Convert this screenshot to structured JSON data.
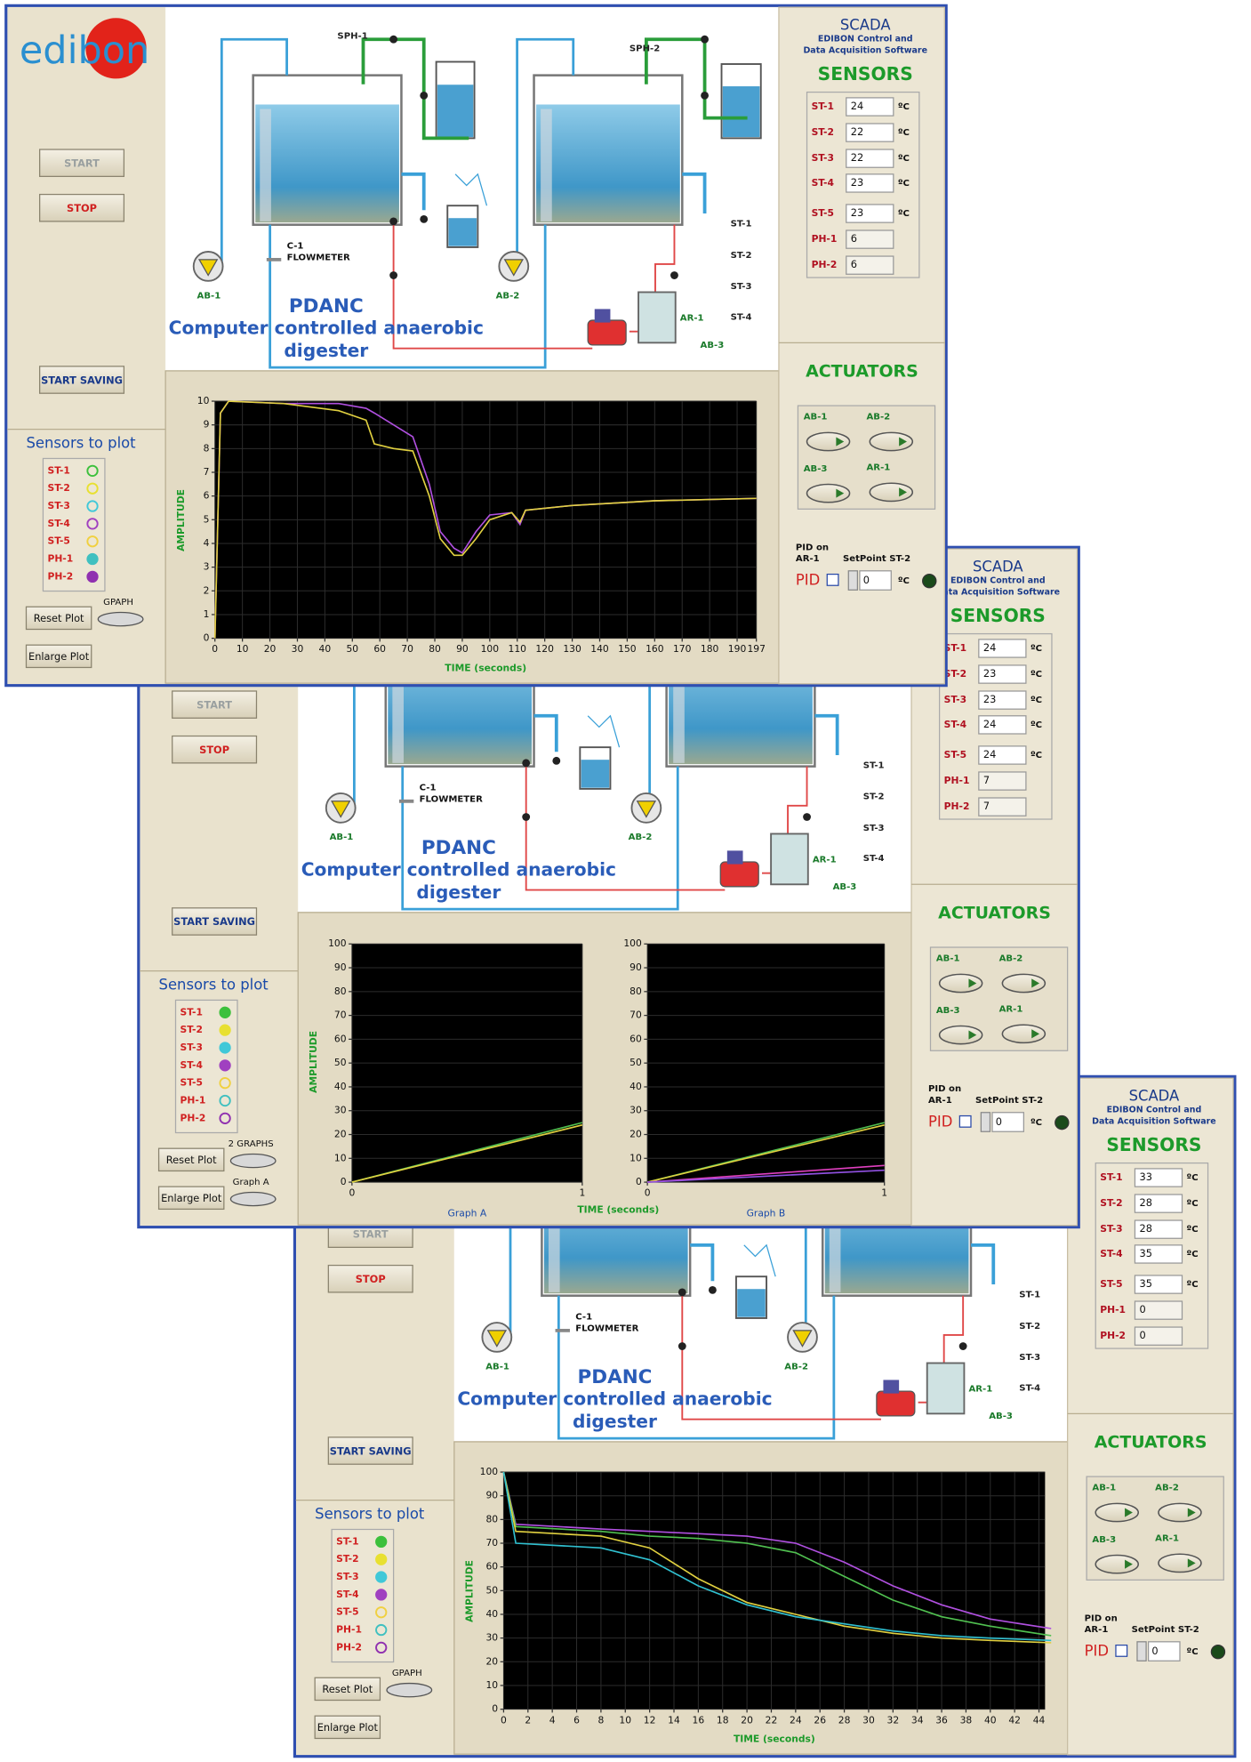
{
  "windows": [
    {
      "logo": "edibon",
      "buttons": {
        "start": "START",
        "stop": "STOP",
        "start_saving": "START SAVING",
        "reset_plot": "Reset Plot",
        "enlarge_plot": "Enlarge Plot"
      },
      "toggles": [
        "GPAPH"
      ],
      "sensors_to_plot": {
        "title": "Sensors to plot",
        "items": [
          {
            "name": "ST-1",
            "color": "#3cc03c",
            "on": false
          },
          {
            "name": "ST-2",
            "color": "#e8e030",
            "on": false
          },
          {
            "name": "ST-3",
            "color": "#40c8d8",
            "on": false
          },
          {
            "name": "ST-4",
            "color": "#a040c0",
            "on": false
          },
          {
            "name": "ST-5",
            "color": "#f0d040",
            "on": false
          },
          {
            "name": "PH-1",
            "color": "#40c0c0",
            "on": true
          },
          {
            "name": "PH-2",
            "color": "#9030b0",
            "on": true
          }
        ]
      },
      "diagram": {
        "tags": [
          "SPH-1",
          "SPH-2"
        ],
        "flowmeter": [
          "C-1",
          "FLOWMETER"
        ],
        "pumps": [
          "AB-1",
          "AB-2"
        ],
        "sensors": [
          "ST-1",
          "ST-2",
          "ST-3",
          "ST-4"
        ],
        "reactor": [
          "AR-1",
          "AB-3"
        ],
        "title": [
          "PDANC",
          "Computer controlled anaerobic",
          "digester"
        ]
      },
      "scada": {
        "title": "SCADA",
        "subtitle": [
          "EDIBON Control and",
          "Data Acquisition Software"
        ]
      },
      "sensors": {
        "title": "SENSORS",
        "rows": [
          {
            "name": "ST-1",
            "value": 24,
            "unit": "ºC"
          },
          {
            "name": "ST-2",
            "value": 22,
            "unit": "ºC"
          },
          {
            "name": "ST-3",
            "value": 22,
            "unit": "ºC"
          },
          {
            "name": "ST-4",
            "value": 23,
            "unit": "ºC"
          },
          {
            "name": "ST-5",
            "value": 23,
            "unit": "ºC"
          },
          {
            "name": "PH-1",
            "value": 6
          },
          {
            "name": "PH-2",
            "value": 6
          }
        ]
      },
      "actuators": {
        "title": "ACTUATORS",
        "items": [
          "AB-1",
          "AB-2",
          "AB-3",
          "AR-1"
        ]
      },
      "pid": {
        "label": [
          "PID on",
          "AR-1"
        ],
        "setpoint_label": "SetPoint ST-2",
        "checkbox": "PID",
        "setpoint": 0,
        "unit": "ºC"
      },
      "plot": {
        "xlabel": "TIME (seconds)",
        "ylabel": "AMPLITUDE",
        "charts": [
          {
            "type": "line",
            "grid": true,
            "x": [
              0,
              2,
              5,
              25,
              45,
              55,
              58,
              65,
              72,
              78,
              82,
              87,
              90,
              95,
              100,
              108,
              111,
              113,
              130,
              160,
              197
            ],
            "xlim": [
              0,
              197
            ],
            "xticks": [
              0,
              10,
              20,
              30,
              40,
              50,
              60,
              70,
              80,
              90,
              100,
              110,
              120,
              130,
              140,
              150,
              160,
              170,
              180,
              190,
              197
            ],
            "ylim": [
              0,
              10
            ],
            "yticks": [
              0,
              1,
              2,
              3,
              4,
              5,
              6,
              7,
              8,
              9,
              10
            ],
            "series": [
              {
                "color": "#b050e0",
                "values": [
                  0,
                  9.5,
                  10,
                  9.9,
                  9.9,
                  9.7,
                  9.5,
                  9,
                  8.5,
                  6.5,
                  4.5,
                  3.8,
                  3.6,
                  4.5,
                  5.2,
                  5.3,
                  4.8,
                  5.4,
                  5.6,
                  5.8,
                  5.9
                ]
              },
              {
                "color": "#e0d040",
                "values": [
                  0,
                  9.5,
                  10,
                  9.9,
                  9.6,
                  9.2,
                  8.2,
                  8,
                  7.9,
                  6,
                  4.2,
                  3.5,
                  3.5,
                  4.2,
                  5,
                  5.3,
                  4.9,
                  5.4,
                  5.6,
                  5.8,
                  5.9
                ]
              }
            ]
          }
        ]
      }
    },
    {
      "buttons": {
        "start": "START",
        "stop": "STOP",
        "start_saving": "START SAVING",
        "reset_plot": "Reset Plot",
        "enlarge_plot": "Enlarge Plot"
      },
      "toggles": [
        "2 GRAPHS",
        "Graph A"
      ],
      "sensors_to_plot": {
        "title": "Sensors to plot",
        "items": [
          {
            "name": "ST-1",
            "color": "#3cc03c",
            "on": true
          },
          {
            "name": "ST-2",
            "color": "#e8e030",
            "on": true
          },
          {
            "name": "ST-3",
            "color": "#40c8d8",
            "on": true
          },
          {
            "name": "ST-4",
            "color": "#a040c0",
            "on": true
          },
          {
            "name": "ST-5",
            "color": "#f0d040",
            "on": false
          },
          {
            "name": "PH-1",
            "color": "#40c0c0",
            "on": false
          },
          {
            "name": "PH-2",
            "color": "#9030b0",
            "on": false
          }
        ]
      },
      "diagram": {
        "flowmeter": [
          "C-1",
          "FLOWMETER"
        ],
        "pumps": [
          "AB-1",
          "AB-2"
        ],
        "sensors": [
          "ST-1",
          "ST-2",
          "ST-3",
          "ST-4"
        ],
        "reactor": [
          "AR-1",
          "AB-3"
        ],
        "title": [
          "PDANC",
          "Computer controlled anaerobic",
          "digester"
        ]
      },
      "scada": {
        "title": "SCADA",
        "subtitle": [
          "EDIBON Control and",
          "Data Acquisition Software"
        ]
      },
      "sensors": {
        "title": "SENSORS",
        "rows": [
          {
            "name": "ST-1",
            "value": 24,
            "unit": "ºC"
          },
          {
            "name": "ST-2",
            "value": 23,
            "unit": "ºC"
          },
          {
            "name": "ST-3",
            "value": 23,
            "unit": "ºC"
          },
          {
            "name": "ST-4",
            "value": 24,
            "unit": "ºC"
          },
          {
            "name": "ST-5",
            "value": 24,
            "unit": "ºC"
          },
          {
            "name": "PH-1",
            "value": 7
          },
          {
            "name": "PH-2",
            "value": 7
          }
        ]
      },
      "actuators": {
        "title": "ACTUATORS",
        "items": [
          "AB-1",
          "AB-2",
          "AB-3",
          "AR-1"
        ]
      },
      "pid": {
        "label": [
          "PID on",
          "AR-1"
        ],
        "setpoint_label": "SetPoint ST-2",
        "checkbox": "PID",
        "setpoint": 0,
        "unit": "ºC"
      },
      "plot": {
        "xlabel": "TIME (seconds)",
        "ylabel": "AMPLITUDE",
        "charts": [
          {
            "type": "line",
            "title": "Graph A",
            "grid": true,
            "x": [
              0,
              1
            ],
            "xlim": [
              0,
              1
            ],
            "xticks": [
              0,
              1
            ],
            "ylim": [
              0,
              100
            ],
            "yticks": [
              0,
              10,
              20,
              30,
              40,
              50,
              60,
              70,
              80,
              90,
              100
            ],
            "series": [
              {
                "color": "#50c050",
                "values": [
                  0,
                  25
                ]
              },
              {
                "color": "#e0d040",
                "values": [
                  0,
                  24
                ]
              }
            ]
          },
          {
            "type": "line",
            "title": "Graph B",
            "grid": true,
            "x": [
              0,
              1
            ],
            "xlim": [
              0,
              1
            ],
            "xticks": [
              0,
              1
            ],
            "ylim": [
              0,
              100
            ],
            "yticks": [
              0,
              10,
              20,
              30,
              40,
              50,
              60,
              70,
              80,
              90,
              100
            ],
            "series": [
              {
                "color": "#50c050",
                "values": [
                  0,
                  25
                ]
              },
              {
                "color": "#e0d040",
                "values": [
                  0,
                  24
                ]
              },
              {
                "color": "#e040c0",
                "values": [
                  0,
                  7
                ]
              },
              {
                "color": "#9050e0",
                "values": [
                  0,
                  5
                ]
              }
            ]
          }
        ]
      }
    },
    {
      "buttons": {
        "start": "START",
        "stop": "STOP",
        "start_saving": "START SAVING",
        "reset_plot": "Reset Plot",
        "enlarge_plot": "Enlarge Plot"
      },
      "toggles": [
        "GPAPH"
      ],
      "sensors_to_plot": {
        "title": "Sensors to plot",
        "items": [
          {
            "name": "ST-1",
            "color": "#3cc03c",
            "on": true
          },
          {
            "name": "ST-2",
            "color": "#e8e030",
            "on": true
          },
          {
            "name": "ST-3",
            "color": "#40c8d8",
            "on": true
          },
          {
            "name": "ST-4",
            "color": "#a040c0",
            "on": true
          },
          {
            "name": "ST-5",
            "color": "#f0d040",
            "on": false
          },
          {
            "name": "PH-1",
            "color": "#40c0c0",
            "on": false
          },
          {
            "name": "PH-2",
            "color": "#9030b0",
            "on": false
          }
        ]
      },
      "diagram": {
        "flowmeter": [
          "C-1",
          "FLOWMETER"
        ],
        "pumps": [
          "AB-1",
          "AB-2"
        ],
        "sensors": [
          "ST-1",
          "ST-2",
          "ST-3",
          "ST-4"
        ],
        "reactor": [
          "AR-1",
          "AB-3"
        ],
        "title": [
          "PDANC",
          "Computer controlled anaerobic",
          "digester"
        ]
      },
      "scada": {
        "title": "SCADA",
        "subtitle": [
          "EDIBON Control and",
          "Data Acquisition Software"
        ]
      },
      "sensors": {
        "title": "SENSORS",
        "rows": [
          {
            "name": "ST-1",
            "value": 33,
            "unit": "ºC"
          },
          {
            "name": "ST-2",
            "value": 28,
            "unit": "ºC"
          },
          {
            "name": "ST-3",
            "value": 28,
            "unit": "ºC"
          },
          {
            "name": "ST-4",
            "value": 35,
            "unit": "ºC"
          },
          {
            "name": "ST-5",
            "value": 35,
            "unit": "ºC"
          },
          {
            "name": "PH-1",
            "value": 0
          },
          {
            "name": "PH-2",
            "value": 0
          }
        ]
      },
      "actuators": {
        "title": "ACTUATORS",
        "items": [
          "AB-1",
          "AB-2",
          "AB-3",
          "AR-1"
        ]
      },
      "pid": {
        "label": [
          "PID on",
          "AR-1"
        ],
        "setpoint_label": "SetPoint ST-2",
        "checkbox": "PID",
        "setpoint": 0,
        "unit": "ºC"
      },
      "plot": {
        "xlabel": "TIME (seconds)",
        "ylabel": "AMPLITUDE",
        "charts": [
          {
            "type": "line",
            "grid": true,
            "x": [
              0,
              1,
              8,
              12,
              16,
              20,
              24,
              28,
              32,
              36,
              40,
              45
            ],
            "xlim": [
              0,
              44.5
            ],
            "xticks": [
              0,
              2,
              4,
              6,
              8,
              10,
              12,
              14,
              16,
              18,
              20,
              22,
              24,
              26,
              28,
              30,
              32,
              34,
              36,
              38,
              40,
              42,
              44
            ],
            "ylim": [
              0,
              100
            ],
            "yticks": [
              0,
              10,
              20,
              30,
              40,
              50,
              60,
              70,
              80,
              90,
              100
            ],
            "series": [
              {
                "color": "#b050e0",
                "values": [
                  100,
                  78,
                  76,
                  75,
                  74,
                  73,
                  70,
                  62,
                  52,
                  44,
                  38,
                  34
                ]
              },
              {
                "color": "#50c050",
                "values": [
                  100,
                  77,
                  75,
                  73,
                  72,
                  70,
                  66,
                  56,
                  46,
                  39,
                  35,
                  31
                ]
              },
              {
                "color": "#e0d040",
                "values": [
                  100,
                  75,
                  73,
                  68,
                  55,
                  45,
                  40,
                  35,
                  32,
                  30,
                  29,
                  28
                ]
              },
              {
                "color": "#30c0d0",
                "values": [
                  100,
                  70,
                  68,
                  63,
                  52,
                  44,
                  39,
                  36,
                  33,
                  31,
                  30,
                  29
                ]
              }
            ]
          }
        ]
      }
    }
  ]
}
